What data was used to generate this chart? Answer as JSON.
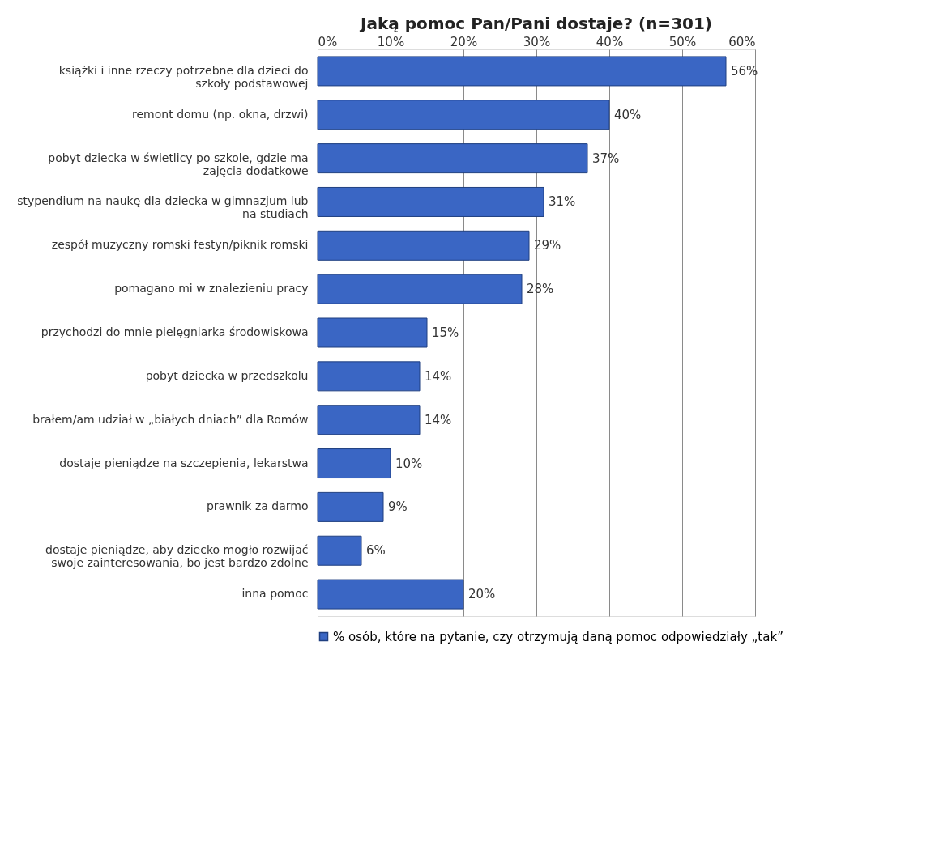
{
  "chart_data": {
    "type": "bar",
    "orientation": "horizontal",
    "title": "Jaką pomoc Pan/Pani dostaje?  (n=301)",
    "categories": [
      "książki i inne rzeczy potrzebne dla dzieci do szkoły podstawowej",
      "remont domu (np. okna, drzwi)",
      "pobyt dziecka w świetlicy po szkole, gdzie ma zajęcia dodatkowe",
      "stypendium na naukę dla dziecka w gimnazjum lub na studiach",
      "zespół muzyczny romski festyn/piknik romski",
      "pomagano mi w znalezieniu pracy",
      "przychodzi do mnie pielęgniarka środowiskowa",
      "pobyt dziecka w przedszkolu",
      "brałem/am udział w „białych dniach” dla Romów",
      "dostaje pieniądze na szczepienia, lekarstwa",
      "prawnik za darmo",
      "dostaje pieniądze, aby dziecko mogło rozwijać swoje zainteresowania, bo jest bardzo zdolne",
      "inna pomoc"
    ],
    "series": [
      {
        "name": "% osób, które na pytanie, czy otrzymują daną pomoc odpowiedziały „tak”",
        "color": "#3a66c4",
        "values": [
          56,
          40,
          37,
          31,
          29,
          28,
          15,
          14,
          14,
          10,
          9,
          6,
          20
        ],
        "value_labels": [
          "56%",
          "40%",
          "37%",
          "31%",
          "29%",
          "28%",
          "15%",
          "14%",
          "14%",
          "10%",
          "9%",
          "6%",
          "20%"
        ]
      }
    ],
    "xlim": [
      0,
      60
    ],
    "xticks": [
      {
        "value": 0,
        "label": "0%"
      },
      {
        "value": 10,
        "label": "10%"
      },
      {
        "value": 20,
        "label": "20%"
      },
      {
        "value": 30,
        "label": "30%"
      },
      {
        "value": 40,
        "label": "40%"
      },
      {
        "value": 50,
        "label": "50%"
      },
      {
        "value": 60,
        "label": "60%"
      }
    ],
    "grid": "x",
    "legend": "bottom"
  }
}
